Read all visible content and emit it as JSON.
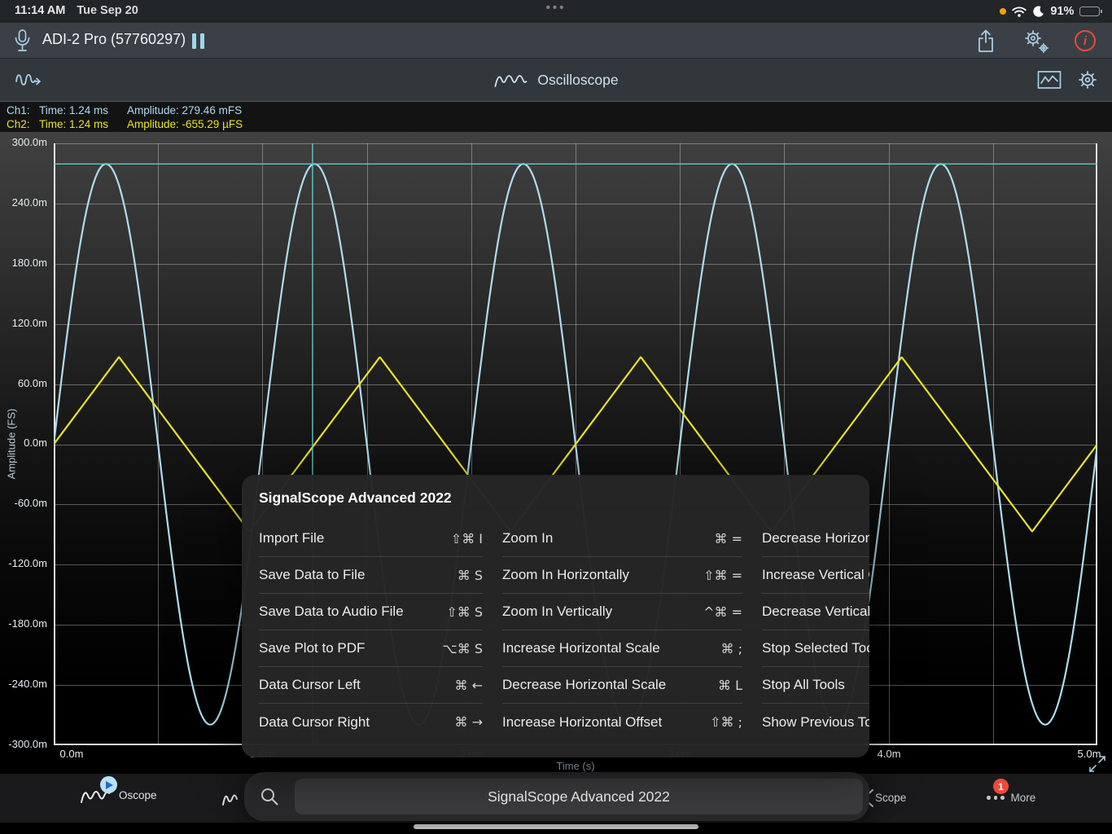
{
  "status_bar": {
    "time": "11:14 AM",
    "date": "Tue Sep 20",
    "center_dots": "•••",
    "battery_percent": "91%",
    "battery_level": 0.91,
    "mic_indicator_color": "#ff9f0a"
  },
  "app_header": {
    "device_title": "ADI-2 Pro (57760297)"
  },
  "toolbar": {
    "title": "Oscilloscope"
  },
  "readout": {
    "ch1_label": "Ch1:",
    "ch1_time": "Time: 1.24 ms",
    "ch1_amplitude": "Amplitude: 279.46 mFS",
    "ch2_label": "Ch2:",
    "ch2_time": "Time: 1.24 ms",
    "ch2_amplitude": "Amplitude: -655.29 µFS"
  },
  "chart_data": {
    "type": "line",
    "xlabel": "Time (s)",
    "ylabel": "Amplitude (FS)",
    "x_range_ms": [
      0,
      5
    ],
    "y_range": [
      -0.3,
      0.3
    ],
    "x_grid_step_ms": 0.5,
    "y_grid_step": 0.06,
    "x_tick_labels": [
      "0.0m",
      "1.0m",
      "2.0m",
      "3.0m",
      "4.0m",
      "5.0m"
    ],
    "y_tick_labels": [
      "300.0m",
      "240.0m",
      "180.0m",
      "120.0m",
      "60.0m",
      "0.0m",
      "-60.0m",
      "-120.0m",
      "-180.0m",
      "-240.0m",
      "-300.0m"
    ],
    "grid": true,
    "series": [
      {
        "name": "Ch1",
        "shape": "sine",
        "amplitude": 0.27946,
        "period_ms": 1.0,
        "phase_ms": 0,
        "color": "#aedcee"
      },
      {
        "name": "Ch2",
        "shape": "triangle",
        "amplitude": 0.087,
        "period_ms": 1.25,
        "phase_ms": 0,
        "color": "#e6e32b"
      }
    ],
    "cursor": {
      "time_ms": 1.24,
      "level": 0.27946,
      "color": "#5fcbc6"
    }
  },
  "menu": {
    "title": "SignalScope Advanced 2022",
    "columns": [
      {
        "items": [
          {
            "label": "Import File",
            "shortcut": "⇧⌘ I"
          },
          {
            "label": "Save Data to File",
            "shortcut": "⌘ S"
          },
          {
            "label": "Save Data to Audio File",
            "shortcut": "⇧⌘ S"
          },
          {
            "label": "Save Plot to PDF",
            "shortcut": "⌥⌘ S"
          },
          {
            "label": "Data Cursor Left",
            "shortcut": "⌘ ←"
          },
          {
            "label": "Data Cursor Right",
            "shortcut": "⌘ →"
          }
        ]
      },
      {
        "items": [
          {
            "label": "Zoom In",
            "shortcut": "⌘ ="
          },
          {
            "label": "Zoom In Horizontally",
            "shortcut": "⇧⌘ ="
          },
          {
            "label": "Zoom In Vertically",
            "shortcut": "^⌘ ="
          },
          {
            "label": "Increase Horizontal Scale",
            "shortcut": "⌘ ;"
          },
          {
            "label": "Decrease Horizontal Scale",
            "shortcut": "⌘ L"
          },
          {
            "label": "Increase Horizontal Offset",
            "shortcut": "⇧⌘ ;"
          }
        ]
      },
      {
        "items": [
          {
            "label": "Decrease Horizontal Offset",
            "shortcut": ""
          },
          {
            "label": "Increase Vertical Offset",
            "shortcut": ""
          },
          {
            "label": "Decrease Vertical Offset",
            "shortcut": ""
          },
          {
            "label": "Stop Selected Tool",
            "shortcut": ""
          },
          {
            "label": "Stop All Tools",
            "shortcut": ""
          },
          {
            "label": "Show Previous Tool",
            "shortcut": ""
          }
        ]
      }
    ]
  },
  "bottom_bar": {
    "app_name_pill": "SignalScope Advanced 2022",
    "tabs": [
      {
        "label": "Oscope"
      },
      {
        "label": "Scope"
      },
      {
        "label": "More",
        "badge": "1"
      }
    ]
  },
  "colors": {
    "accent_icon_blue": "#a9cfe5",
    "ch1_trace": "#aedcee",
    "ch2_trace": "#e6e32b",
    "cursor_teal": "#5fcbc6",
    "badge_red": "#ed4a3c",
    "info_red": "#e84b3a"
  }
}
